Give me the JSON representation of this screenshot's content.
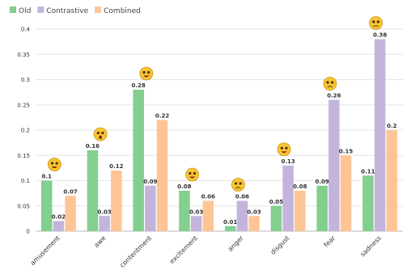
{
  "chart_data": {
    "type": "bar",
    "title": "",
    "xlabel": "",
    "ylabel": "",
    "ylim": [
      0,
      0.4
    ],
    "yticks": [
      0,
      0.05,
      0.1,
      0.15,
      0.2,
      0.25,
      0.3,
      0.35,
      0.4
    ],
    "ytick_labels": [
      "0",
      "0.05",
      "0.1",
      "0.15",
      "0.2",
      "0.25",
      "0.3",
      "0.35",
      "0.4"
    ],
    "grid": "horizontal",
    "legend": "top-left",
    "categories": [
      "amusement",
      "awe",
      "contentment",
      "excitement",
      "anger",
      "disgust",
      "fear",
      "sadness"
    ],
    "category_emoji_icons": [
      "laughing-face-icon",
      "astonished-face-icon",
      "smiling-face-icon",
      "grinning-face-icon",
      "angry-face-icon",
      "nauseated-face-icon",
      "fearful-face-icon",
      "sad-face-icon"
    ],
    "series": [
      {
        "name": "Old",
        "color": "#82cf8e",
        "values": [
          0.1,
          0.16,
          0.28,
          0.08,
          0.01,
          0.05,
          0.09,
          0.11
        ]
      },
      {
        "name": "Contrastive",
        "color": "#c3b4dc",
        "values": [
          0.02,
          0.03,
          0.09,
          0.03,
          0.06,
          0.13,
          0.26,
          0.38
        ]
      },
      {
        "name": "Combined",
        "color": "#fdc596",
        "values": [
          0.07,
          0.12,
          0.22,
          0.06,
          0.03,
          0.08,
          0.15,
          0.2
        ]
      }
    ]
  }
}
